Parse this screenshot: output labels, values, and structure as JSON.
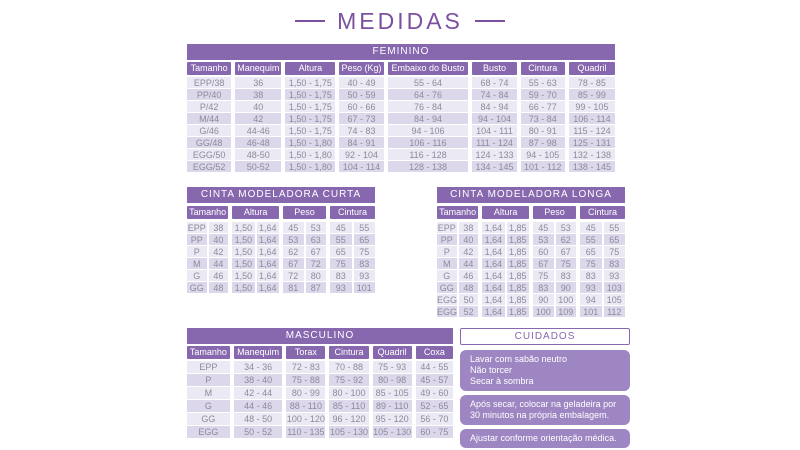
{
  "page_title": "MEDIDAS",
  "colors": {
    "header_purple": "#8768AF",
    "care_box_purple": "#9D86C2",
    "row_light": "#EBE9F3",
    "row_dark": "#DCD7EA",
    "cell_text": "#8D8A9C",
    "title_purple": "#7C4F9F"
  },
  "tables": {
    "feminino": {
      "title": "FEMININO",
      "headers": [
        "Tamanho",
        "Manequim",
        "Altura",
        "Peso (Kg)",
        "Embaixo do Busto",
        "Busto",
        "Cintura",
        "Quadril"
      ],
      "rows": [
        [
          "EPP/38",
          "36",
          "1,50 - 1,75",
          "40 - 49",
          "55 - 64",
          "68 - 74",
          "55 - 63",
          "78 - 85"
        ],
        [
          "PP/40",
          "38",
          "1,50 - 1,75",
          "50 - 59",
          "64 - 76",
          "74 - 84",
          "59 - 70",
          "85 - 99"
        ],
        [
          "P/42",
          "40",
          "1,50 - 1,75",
          "60 - 66",
          "76 - 84",
          "84 - 94",
          "66 - 77",
          "99 - 105"
        ],
        [
          "M/44",
          "42",
          "1,50 - 1,75",
          "67 - 73",
          "84 - 94",
          "94 - 104",
          "73 - 84",
          "106 - 114"
        ],
        [
          "G/46",
          "44-46",
          "1,50 - 1,75",
          "74 - 83",
          "94 - 106",
          "104 - 111",
          "80 - 91",
          "115 - 124"
        ],
        [
          "GG/48",
          "46-48",
          "1,50 - 1,80",
          "84 - 91",
          "106 - 116",
          "111 - 124",
          "87 - 98",
          "125 - 131"
        ],
        [
          "EGG/50",
          "48-50",
          "1,50 - 1,80",
          "92 - 104",
          "116 - 128",
          "124 - 133",
          "94 - 105",
          "132 - 138"
        ],
        [
          "EGG/52",
          "50-52",
          "1,50 - 1,80",
          "104 - 114",
          "128 - 138",
          "134 - 145",
          "101 - 112",
          "138 - 145"
        ]
      ]
    },
    "cinta_curta": {
      "title": "CINTA MODELADORA CURTA",
      "headers": [
        "Tamanho",
        "Altura",
        "Peso",
        "Cintura"
      ],
      "rows": [
        [
          [
            "EPP",
            "38"
          ],
          [
            "1,50",
            "1,64"
          ],
          [
            "45",
            "53"
          ],
          [
            "45",
            "55"
          ]
        ],
        [
          [
            "PP",
            "40"
          ],
          [
            "1,50",
            "1,64"
          ],
          [
            "53",
            "63"
          ],
          [
            "55",
            "65"
          ]
        ],
        [
          [
            "P",
            "42"
          ],
          [
            "1,50",
            "1,64"
          ],
          [
            "62",
            "67"
          ],
          [
            "65",
            "75"
          ]
        ],
        [
          [
            "M",
            "44"
          ],
          [
            "1,50",
            "1,64"
          ],
          [
            "67",
            "72"
          ],
          [
            "75",
            "83"
          ]
        ],
        [
          [
            "G",
            "46"
          ],
          [
            "1,50",
            "1,64"
          ],
          [
            "72",
            "80"
          ],
          [
            "83",
            "93"
          ]
        ],
        [
          [
            "GG",
            "48"
          ],
          [
            "1,50",
            "1,64"
          ],
          [
            "81",
            "87"
          ],
          [
            "93",
            "101"
          ]
        ]
      ]
    },
    "cinta_longa": {
      "title": "CINTA MODELADORA LONGA",
      "headers": [
        "Tamanho",
        "Altura",
        "Peso",
        "Cintura"
      ],
      "rows": [
        [
          [
            "EPP",
            "38"
          ],
          [
            "1,64",
            "1,85"
          ],
          [
            "45",
            "53"
          ],
          [
            "45",
            "55"
          ]
        ],
        [
          [
            "PP",
            "40"
          ],
          [
            "1,64",
            "1,85"
          ],
          [
            "53",
            "62"
          ],
          [
            "55",
            "65"
          ]
        ],
        [
          [
            "P",
            "42"
          ],
          [
            "1,64",
            "1,85"
          ],
          [
            "60",
            "67"
          ],
          [
            "65",
            "75"
          ]
        ],
        [
          [
            "M",
            "44"
          ],
          [
            "1,64",
            "1,85"
          ],
          [
            "67",
            "75"
          ],
          [
            "75",
            "83"
          ]
        ],
        [
          [
            "G",
            "46"
          ],
          [
            "1,64",
            "1,85"
          ],
          [
            "75",
            "83"
          ],
          [
            "83",
            "93"
          ]
        ],
        [
          [
            "GG",
            "48"
          ],
          [
            "1,64",
            "1,85"
          ],
          [
            "83",
            "90"
          ],
          [
            "93",
            "103"
          ]
        ],
        [
          [
            "EGG",
            "50"
          ],
          [
            "1,64",
            "1,85"
          ],
          [
            "90",
            "100"
          ],
          [
            "94",
            "105"
          ]
        ],
        [
          [
            "EGG",
            "52"
          ],
          [
            "1,64",
            "1,85"
          ],
          [
            "100",
            "109"
          ],
          [
            "101",
            "112"
          ]
        ]
      ]
    },
    "masculino": {
      "title": "MASCULINO",
      "headers": [
        "Tamanho",
        "Manequim",
        "Torax",
        "Cintura",
        "Quadril",
        "Coxa"
      ],
      "rows": [
        [
          "EPP",
          "34 - 36",
          "72 - 83",
          "70 - 88",
          "75 - 93",
          "44 - 55"
        ],
        [
          "P",
          "38 - 40",
          "75 - 88",
          "75 - 92",
          "80 - 98",
          "45 - 57"
        ],
        [
          "M",
          "42 - 44",
          "80 - 99",
          "80 - 100",
          "85 - 105",
          "49 - 60"
        ],
        [
          "G",
          "44 - 46",
          "88 - 110",
          "85 - 110",
          "89 - 110",
          "52 - 65"
        ],
        [
          "GG",
          "48 - 50",
          "100 - 120",
          "96 - 120",
          "95 - 120",
          "56 - 70"
        ],
        [
          "EGG",
          "50 - 52",
          "110 - 135",
          "105 - 130",
          "105 - 130",
          "60 - 75"
        ]
      ]
    }
  },
  "cuidados": {
    "title": "CUIDADOS",
    "boxes": [
      {
        "lines": [
          "Lavar com sabão neutro",
          "Não torcer",
          "Secar à sombra"
        ]
      },
      {
        "lines": [
          "Após secar, colocar na geladeira por",
          "30 minutos na própria embalagem."
        ]
      },
      {
        "lines": [
          "Ajustar conforme orientação médica."
        ]
      }
    ]
  }
}
